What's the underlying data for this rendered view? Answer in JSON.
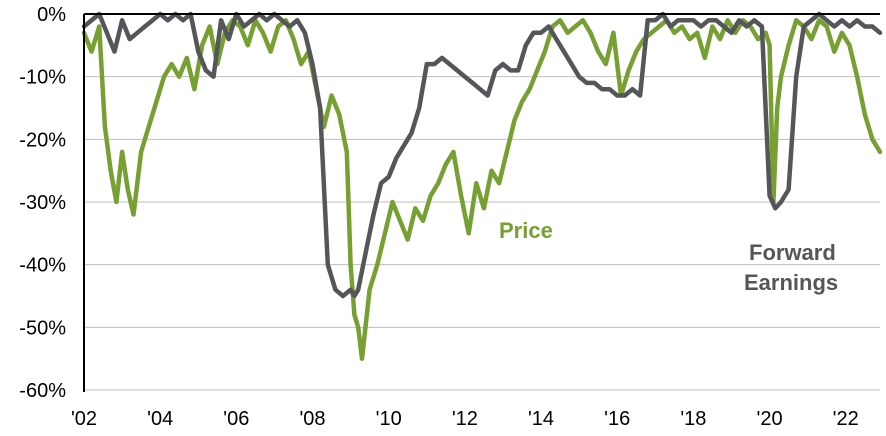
{
  "chart_data": {
    "type": "line",
    "title": "",
    "xlabel": "",
    "ylabel": "",
    "xlim": [
      2002.0,
      2022.9
    ],
    "ylim": [
      -60,
      0
    ],
    "y_ticks": [
      {
        "value": 0,
        "label": "0%"
      },
      {
        "value": -10,
        "label": "-10%"
      },
      {
        "value": -20,
        "label": "-20%"
      },
      {
        "value": -30,
        "label": "-30%"
      },
      {
        "value": -40,
        "label": "-40%"
      },
      {
        "value": -50,
        "label": "-50%"
      },
      {
        "value": -60,
        "label": "-60%"
      }
    ],
    "x_ticks": [
      {
        "value": 2002,
        "label": "'02"
      },
      {
        "value": 2004,
        "label": "'04"
      },
      {
        "value": 2006,
        "label": "'06"
      },
      {
        "value": 2008,
        "label": "'08"
      },
      {
        "value": 2010,
        "label": "'10"
      },
      {
        "value": 2012,
        "label": "'12"
      },
      {
        "value": 2014,
        "label": "'14"
      },
      {
        "value": 2016,
        "label": "'16"
      },
      {
        "value": 2018,
        "label": "'18"
      },
      {
        "value": 2020,
        "label": "'20"
      },
      {
        "value": 2022,
        "label": "'22"
      }
    ],
    "grid": "horizontal",
    "colors": {
      "price": "#77a032",
      "earnings": "#55565a",
      "grid": "#bfbfbf",
      "axis": "#000000"
    },
    "series": [
      {
        "name": "Price",
        "x": [
          2002.0,
          2002.2,
          2002.4,
          2002.55,
          2002.7,
          2002.85,
          2003.0,
          2003.15,
          2003.3,
          2003.5,
          2003.7,
          2003.9,
          2004.1,
          2004.3,
          2004.5,
          2004.7,
          2004.9,
          2005.1,
          2005.3,
          2005.5,
          2005.7,
          2005.9,
          2006.1,
          2006.3,
          2006.5,
          2006.7,
          2006.9,
          2007.1,
          2007.3,
          2007.5,
          2007.7,
          2007.9,
          2008.1,
          2008.3,
          2008.5,
          2008.7,
          2008.9,
          2009.0,
          2009.1,
          2009.2,
          2009.3,
          2009.5,
          2009.7,
          2009.9,
          2010.1,
          2010.3,
          2010.5,
          2010.7,
          2010.9,
          2011.1,
          2011.3,
          2011.5,
          2011.7,
          2011.9,
          2012.1,
          2012.3,
          2012.5,
          2012.7,
          2012.9,
          2013.1,
          2013.3,
          2013.5,
          2013.7,
          2013.9,
          2014.1,
          2014.3,
          2014.5,
          2014.7,
          2014.9,
          2015.1,
          2015.3,
          2015.5,
          2015.7,
          2015.9,
          2016.1,
          2016.3,
          2016.5,
          2016.7,
          2016.9,
          2017.1,
          2017.3,
          2017.5,
          2017.7,
          2017.9,
          2018.1,
          2018.3,
          2018.5,
          2018.7,
          2018.9,
          2019.1,
          2019.3,
          2019.5,
          2019.7,
          2019.9,
          2020.0,
          2020.1,
          2020.2,
          2020.3,
          2020.5,
          2020.7,
          2020.9,
          2021.1,
          2021.3,
          2021.5,
          2021.7,
          2021.9,
          2022.1,
          2022.3,
          2022.5,
          2022.7,
          2022.9
        ],
        "values": [
          -3,
          -6,
          -2,
          -18,
          -25,
          -30,
          -22,
          -28,
          -32,
          -22,
          -18,
          -14,
          -10,
          -8,
          -10,
          -7,
          -12,
          -5,
          -2,
          -8,
          -3,
          -1,
          -2,
          -5,
          -1,
          -3,
          -6,
          -2,
          -1,
          -4,
          -8,
          -6,
          -12,
          -18,
          -13,
          -16,
          -22,
          -40,
          -48,
          -50,
          -55,
          -44,
          -40,
          -35,
          -30,
          -33,
          -36,
          -31,
          -33,
          -29,
          -27,
          -24,
          -22,
          -29,
          -35,
          -27,
          -31,
          -25,
          -27,
          -22,
          -17,
          -14,
          -12,
          -9,
          -6,
          -2,
          -1,
          -3,
          -2,
          -1,
          -3,
          -6,
          -8,
          -3,
          -13,
          -9,
          -6,
          -4,
          -3,
          -2,
          -1,
          -3,
          -2,
          -4,
          -3,
          -7,
          -2,
          -4,
          -1,
          -3,
          -1,
          -2,
          -4,
          -3,
          -5,
          -30,
          -15,
          -10,
          -5,
          -1,
          -2,
          -4,
          -1,
          -2,
          -6,
          -3,
          -5,
          -10,
          -16,
          -20,
          -22
        ]
      },
      {
        "name": "Forward Earnings",
        "x": [
          2002.0,
          2002.2,
          2002.4,
          2002.6,
          2002.8,
          2003.0,
          2003.2,
          2003.4,
          2003.6,
          2003.8,
          2004.0,
          2004.2,
          2004.4,
          2004.6,
          2004.8,
          2005.0,
          2005.2,
          2005.4,
          2005.6,
          2005.8,
          2006.0,
          2006.2,
          2006.4,
          2006.6,
          2006.8,
          2007.0,
          2007.2,
          2007.4,
          2007.6,
          2007.8,
          2008.0,
          2008.2,
          2008.4,
          2008.6,
          2008.8,
          2009.0,
          2009.1,
          2009.2,
          2009.4,
          2009.6,
          2009.8,
          2010.0,
          2010.2,
          2010.4,
          2010.6,
          2010.8,
          2011.0,
          2011.2,
          2011.4,
          2011.6,
          2011.8,
          2012.0,
          2012.2,
          2012.4,
          2012.6,
          2012.8,
          2013.0,
          2013.2,
          2013.4,
          2013.6,
          2013.8,
          2014.0,
          2014.2,
          2014.4,
          2014.6,
          2014.8,
          2015.0,
          2015.2,
          2015.4,
          2015.6,
          2015.8,
          2016.0,
          2016.2,
          2016.4,
          2016.6,
          2016.8,
          2017.0,
          2017.2,
          2017.4,
          2017.6,
          2017.8,
          2018.0,
          2018.2,
          2018.4,
          2018.6,
          2018.8,
          2019.0,
          2019.2,
          2019.4,
          2019.6,
          2019.8,
          2020.0,
          2020.15,
          2020.3,
          2020.5,
          2020.7,
          2020.9,
          2021.1,
          2021.3,
          2021.5,
          2021.7,
          2021.9,
          2022.1,
          2022.3,
          2022.5,
          2022.7,
          2022.9
        ],
        "values": [
          -2,
          -1,
          0,
          -3,
          -6,
          -1,
          -4,
          -3,
          -2,
          -1,
          0,
          -1,
          0,
          -1,
          0,
          -6,
          -9,
          -10,
          -1,
          -4,
          0,
          -2,
          -1,
          0,
          -1,
          0,
          -1,
          -2,
          -1,
          -3,
          -8,
          -15,
          -40,
          -44,
          -45,
          -44,
          -45,
          -44,
          -38,
          -32,
          -27,
          -26,
          -23,
          -21,
          -19,
          -15,
          -8,
          -8,
          -7,
          -8,
          -9,
          -10,
          -11,
          -12,
          -13,
          -9,
          -8,
          -9,
          -9,
          -5,
          -3,
          -3,
          -2,
          -4,
          -6,
          -8,
          -10,
          -11,
          -11,
          -12,
          -12,
          -13,
          -13,
          -12,
          -13,
          -1,
          -1,
          0,
          -2,
          -1,
          -1,
          -1,
          -2,
          -1,
          -1,
          -2,
          -3,
          -1,
          -2,
          -1,
          -2,
          -29,
          -31,
          -30,
          -28,
          -10,
          -2,
          -1,
          0,
          -1,
          -2,
          -1,
          -2,
          -1,
          -2,
          -2,
          -3
        ]
      }
    ],
    "annotations": [
      {
        "series": "Price",
        "text": "Price"
      },
      {
        "series": "Forward Earnings",
        "text": "Forward"
      },
      {
        "series": "Forward Earnings",
        "text": "Earnings"
      }
    ]
  }
}
